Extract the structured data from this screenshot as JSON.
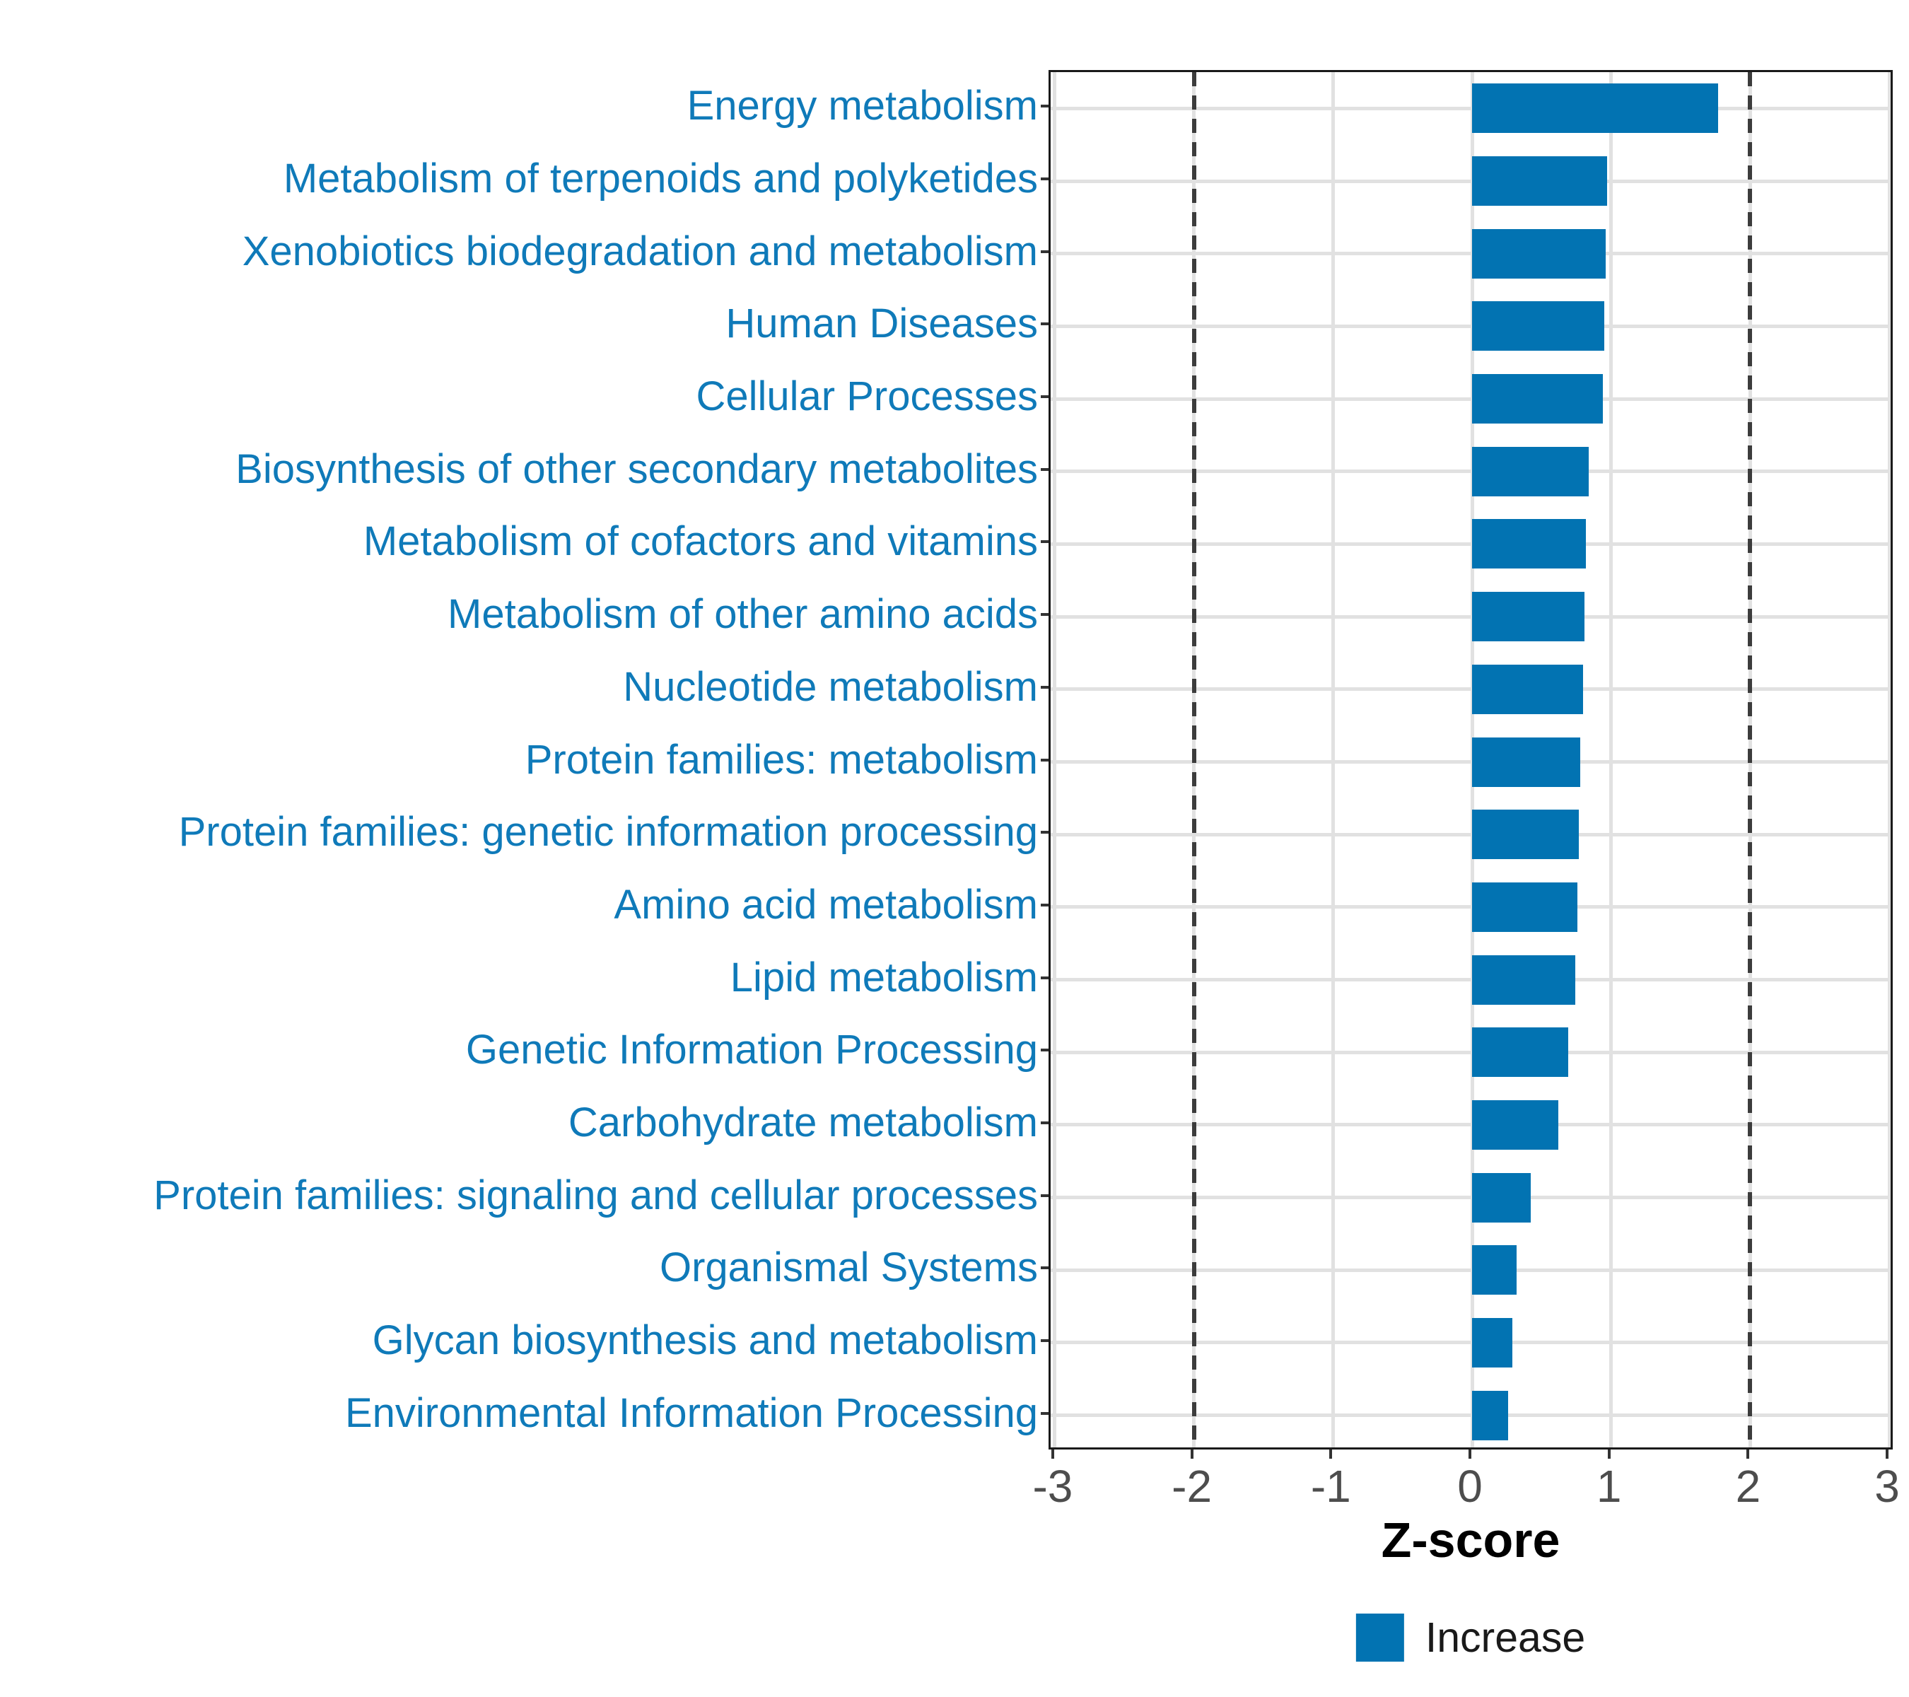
{
  "chart_data": {
    "type": "bar",
    "orientation": "horizontal",
    "categories": [
      "Energy metabolism",
      "Metabolism of terpenoids and polyketides",
      "Xenobiotics biodegradation and metabolism",
      "Human Diseases",
      "Cellular Processes",
      "Biosynthesis of other secondary metabolites",
      "Metabolism of cofactors and vitamins",
      "Metabolism of other amino acids",
      "Nucleotide metabolism",
      "Protein families: metabolism",
      "Protein families: genetic information processing",
      "Amino acid metabolism",
      "Lipid metabolism",
      "Genetic Information Processing",
      "Carbohydrate metabolism",
      "Protein families: signaling and cellular processes",
      "Organismal Systems",
      "Glycan biosynthesis and metabolism",
      "Environmental Information Processing"
    ],
    "values": [
      1.77,
      0.97,
      0.96,
      0.95,
      0.94,
      0.84,
      0.82,
      0.81,
      0.8,
      0.78,
      0.77,
      0.76,
      0.74,
      0.69,
      0.62,
      0.42,
      0.32,
      0.29,
      0.26
    ],
    "series": [
      {
        "name": "Increase",
        "values": [
          1.77,
          0.97,
          0.96,
          0.95,
          0.94,
          0.84,
          0.82,
          0.81,
          0.8,
          0.78,
          0.77,
          0.76,
          0.74,
          0.69,
          0.62,
          0.42,
          0.32,
          0.29,
          0.26
        ]
      }
    ],
    "title": "",
    "xlabel": "Z-score",
    "ylabel": "",
    "xlim": [
      -3,
      3
    ],
    "xticks": [
      -3,
      -2,
      -1,
      0,
      1,
      2,
      3
    ],
    "xtick_labels": [
      "-3",
      "-2",
      "-1",
      "0",
      "1",
      "2",
      "3"
    ],
    "reference_lines": [
      -2,
      2
    ],
    "grid": true,
    "legend_position": "bottom",
    "colors": {
      "bar": "#0273b2",
      "category_label": "#0f7ab9",
      "tick_label": "#4d4d4d",
      "axis_title": "#000000",
      "reference_line": "#3c3c3c",
      "gridline": "#e1e1e1",
      "panel_border": "#1a1a1a"
    }
  },
  "x_axis": {
    "title": "Z-score"
  },
  "legend": {
    "label": "Increase"
  }
}
